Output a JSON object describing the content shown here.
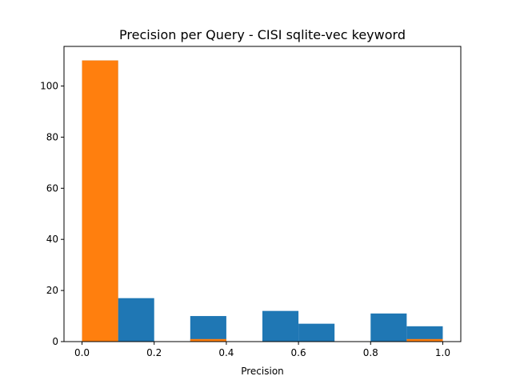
{
  "chart_data": {
    "type": "bar",
    "title": "Precision per Query - CISI sqlite-vec keyword",
    "xlabel": "Precision",
    "ylabel": "",
    "bin_edges": [
      0.0,
      0.1,
      0.2,
      0.3,
      0.4,
      0.5,
      0.6,
      0.7,
      0.8,
      0.9,
      1.0
    ],
    "series": [
      {
        "name": "series-blue",
        "color": "#1f77b4",
        "values": [
          110,
          17,
          0,
          10,
          0,
          12,
          7,
          0,
          11,
          6
        ]
      },
      {
        "name": "series-orange",
        "color": "#ff7f0e",
        "values": [
          110,
          0,
          0,
          1,
          0,
          0,
          0,
          0,
          0,
          1
        ]
      }
    ],
    "xlim": [
      -0.05,
      1.05
    ],
    "ylim": [
      0,
      115.5
    ],
    "xticks": [
      0.0,
      0.2,
      0.4,
      0.6,
      0.8,
      1.0
    ],
    "xtick_labels": [
      "0.0",
      "0.2",
      "0.4",
      "0.6",
      "0.8",
      "1.0"
    ],
    "yticks": [
      0,
      20,
      40,
      60,
      80,
      100
    ],
    "ytick_labels": [
      "0",
      "20",
      "40",
      "60",
      "80",
      "100"
    ]
  }
}
